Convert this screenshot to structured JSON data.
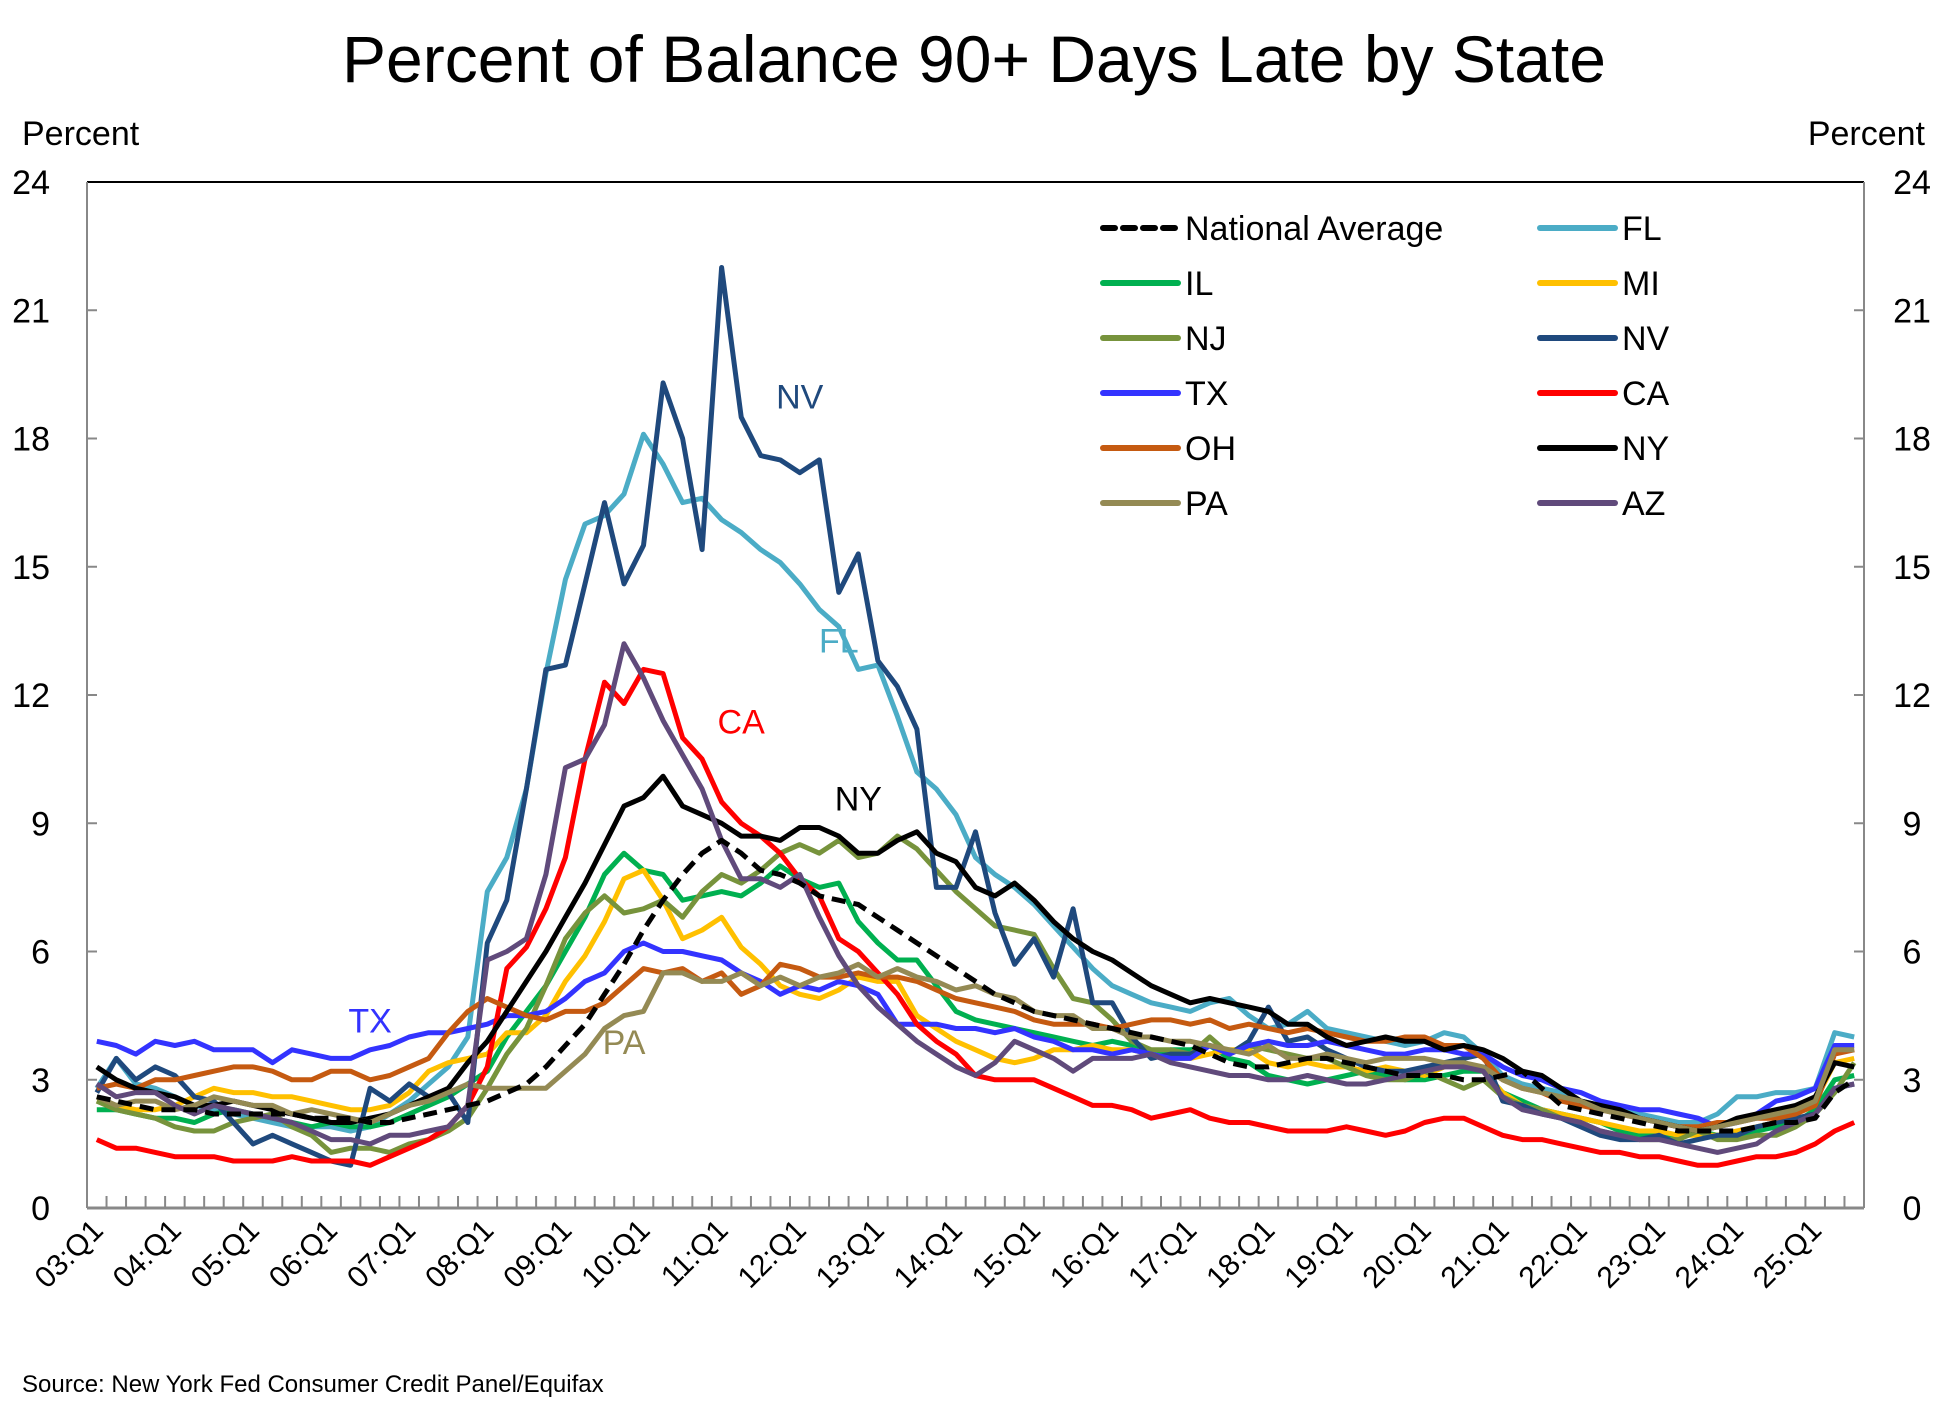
{
  "chart_data": {
    "type": "line",
    "title": "Percent of Balance 90+ Days Late by State",
    "ylabel_left": "Percent",
    "ylabel_right": "Percent",
    "xlabel": "",
    "ylim": [
      0,
      24
    ],
    "yticks": [
      0,
      3,
      6,
      9,
      12,
      15,
      18,
      21,
      24
    ],
    "x_start": "03:Q1",
    "x_end": "25:Q3",
    "xtick_labels": [
      "03:Q1",
      "04:Q1",
      "05:Q1",
      "06:Q1",
      "07:Q1",
      "08:Q1",
      "09:Q1",
      "10:Q1",
      "11:Q1",
      "12:Q1",
      "13:Q1",
      "14:Q1",
      "15:Q1",
      "16:Q1",
      "17:Q1",
      "18:Q1",
      "19:Q1",
      "20:Q1",
      "21:Q1",
      "22:Q1",
      "23:Q1",
      "24:Q1",
      "25:Q1"
    ],
    "grid": false,
    "legend_position": "top-right",
    "source": "Source: New York Fed Consumer Credit Panel/Equifax",
    "annotations": [
      {
        "text": "NV",
        "series": "NV",
        "x": "12:Q1",
        "y": 18.7
      },
      {
        "text": "FL",
        "series": "FL",
        "x": "12:Q3",
        "y": 13.0
      },
      {
        "text": "CA",
        "series": "CA",
        "x": "11:Q2",
        "y": 11.1
      },
      {
        "text": "NY",
        "series": "NY",
        "x": "12:Q4",
        "y": 9.3
      },
      {
        "text": "TX",
        "series": "TX",
        "x": "06:Q3",
        "y": 4.1
      },
      {
        "text": "PA",
        "series": "PA",
        "x": "09:Q4",
        "y": 3.6
      }
    ],
    "series": [
      {
        "name": "National Average",
        "color": "#000000",
        "dashed": true,
        "values": [
          2.6,
          2.5,
          2.4,
          2.3,
          2.3,
          2.3,
          2.2,
          2.2,
          2.2,
          2.2,
          2.2,
          2.1,
          2.1,
          2.1,
          2.0,
          2.0,
          2.1,
          2.2,
          2.3,
          2.4,
          2.5,
          2.7,
          2.9,
          3.3,
          3.8,
          4.3,
          5.0,
          5.7,
          6.5,
          7.2,
          7.8,
          8.3,
          8.6,
          8.3,
          7.9,
          7.8,
          7.6,
          7.3,
          7.2,
          7.1,
          6.8,
          6.5,
          6.2,
          5.9,
          5.6,
          5.3,
          5.0,
          4.8,
          4.6,
          4.5,
          4.4,
          4.3,
          4.2,
          4.1,
          4.0,
          3.9,
          3.8,
          3.6,
          3.4,
          3.3,
          3.3,
          3.4,
          3.5,
          3.5,
          3.4,
          3.3,
          3.2,
          3.1,
          3.1,
          3.1,
          3.0,
          3.0,
          3.1,
          3.2,
          2.8,
          2.4,
          2.3,
          2.2,
          2.1,
          2.0,
          1.9,
          1.8,
          1.8,
          1.8,
          1.8,
          1.9,
          2.0,
          2.0,
          2.1,
          2.7,
          3.0
        ]
      },
      {
        "name": "FL",
        "color": "#4BACC6",
        "dashed": false,
        "values": [
          2.8,
          3.5,
          2.9,
          2.8,
          2.6,
          2.4,
          2.3,
          2.2,
          2.1,
          2.0,
          1.9,
          1.9,
          1.9,
          1.8,
          1.9,
          2.2,
          2.5,
          2.9,
          3.3,
          4.0,
          7.4,
          8.2,
          9.8,
          12.5,
          14.7,
          16.0,
          16.2,
          16.7,
          18.1,
          17.4,
          16.5,
          16.6,
          16.1,
          15.8,
          15.4,
          15.1,
          14.6,
          14.0,
          13.6,
          12.6,
          12.7,
          11.5,
          10.2,
          9.8,
          9.2,
          8.2,
          7.8,
          7.5,
          7.1,
          6.6,
          6.1,
          5.6,
          5.2,
          5.0,
          4.8,
          4.7,
          4.6,
          4.8,
          4.9,
          4.5,
          4.2,
          4.3,
          4.6,
          4.2,
          4.1,
          4.0,
          3.9,
          3.8,
          3.9,
          4.1,
          4.0,
          3.6,
          3.1,
          2.9,
          2.8,
          2.7,
          2.5,
          2.4,
          2.3,
          2.2,
          2.1,
          2.0,
          2.0,
          2.2,
          2.6,
          2.6,
          2.7,
          2.7,
          2.8,
          4.1,
          4.0
        ]
      },
      {
        "name": "IL",
        "color": "#00B050",
        "dashed": false,
        "values": [
          2.3,
          2.3,
          2.2,
          2.1,
          2.1,
          2.0,
          2.2,
          2.3,
          2.2,
          2.1,
          2.0,
          1.9,
          2.0,
          1.9,
          1.9,
          2.0,
          2.2,
          2.4,
          2.6,
          2.9,
          3.2,
          4.0,
          4.6,
          5.2,
          6.0,
          6.8,
          7.8,
          8.3,
          7.9,
          7.8,
          7.2,
          7.3,
          7.4,
          7.3,
          7.6,
          8.0,
          7.7,
          7.5,
          7.6,
          6.7,
          6.2,
          5.8,
          5.8,
          5.2,
          4.6,
          4.4,
          4.3,
          4.2,
          4.1,
          4.0,
          3.9,
          3.8,
          3.9,
          3.8,
          3.6,
          3.7,
          3.7,
          3.8,
          3.5,
          3.4,
          3.1,
          3.0,
          2.9,
          3.0,
          3.1,
          3.2,
          3.1,
          3.0,
          3.0,
          3.1,
          3.2,
          3.2,
          2.7,
          2.5,
          2.3,
          2.2,
          2.1,
          2.0,
          1.8,
          1.7,
          1.7,
          1.7,
          1.8,
          1.7,
          1.7,
          1.8,
          1.9,
          2.0,
          2.3,
          3.0,
          3.1
        ]
      },
      {
        "name": "MI",
        "color": "#FFC000",
        "dashed": false,
        "values": [
          2.5,
          2.4,
          2.3,
          2.3,
          2.4,
          2.6,
          2.8,
          2.7,
          2.7,
          2.6,
          2.6,
          2.5,
          2.4,
          2.3,
          2.3,
          2.4,
          2.7,
          3.2,
          3.4,
          3.5,
          3.6,
          4.1,
          4.1,
          4.5,
          5.3,
          5.9,
          6.7,
          7.7,
          7.9,
          7.2,
          6.3,
          6.5,
          6.8,
          6.1,
          5.7,
          5.2,
          5.0,
          4.9,
          5.1,
          5.4,
          5.3,
          5.3,
          4.5,
          4.2,
          3.9,
          3.7,
          3.5,
          3.4,
          3.5,
          3.7,
          3.7,
          3.8,
          3.7,
          3.7,
          3.6,
          3.5,
          3.5,
          3.6,
          3.7,
          3.7,
          3.4,
          3.3,
          3.4,
          3.3,
          3.3,
          3.2,
          3.3,
          3.2,
          3.1,
          3.3,
          3.4,
          3.2,
          2.7,
          2.4,
          2.3,
          2.2,
          2.1,
          2.0,
          1.9,
          1.8,
          1.8,
          1.7,
          1.7,
          1.7,
          1.8,
          1.9,
          2.0,
          2.3,
          2.5,
          3.4,
          3.5
        ]
      },
      {
        "name": "NJ",
        "color": "#77933C",
        "dashed": false,
        "values": [
          2.5,
          2.3,
          2.2,
          2.1,
          1.9,
          1.8,
          1.8,
          2.0,
          2.1,
          2.2,
          1.9,
          1.7,
          1.3,
          1.4,
          1.4,
          1.3,
          1.5,
          1.6,
          1.8,
          2.1,
          2.8,
          3.6,
          4.2,
          5.2,
          6.3,
          6.9,
          7.3,
          6.9,
          7.0,
          7.2,
          6.8,
          7.4,
          7.8,
          7.6,
          7.9,
          8.3,
          8.5,
          8.3,
          8.6,
          8.2,
          8.3,
          8.7,
          8.4,
          7.9,
          7.4,
          7.0,
          6.6,
          6.5,
          6.4,
          5.6,
          4.9,
          4.8,
          4.4,
          3.9,
          3.7,
          3.7,
          3.6,
          4.0,
          3.6,
          3.8,
          3.7,
          3.6,
          3.5,
          3.5,
          3.3,
          3.1,
          3.0,
          3.0,
          3.2,
          3.0,
          2.8,
          3.0,
          2.6,
          2.4,
          2.3,
          2.1,
          2.0,
          1.8,
          1.7,
          1.6,
          1.6,
          1.6,
          1.8,
          1.6,
          1.6,
          1.7,
          1.7,
          1.9,
          2.2,
          2.7,
          3.4
        ]
      },
      {
        "name": "NV",
        "color": "#1F497D",
        "dashed": false,
        "values": [
          2.7,
          3.5,
          3.0,
          3.3,
          3.1,
          2.6,
          2.5,
          2.0,
          1.5,
          1.7,
          1.5,
          1.3,
          1.1,
          1.0,
          2.8,
          2.5,
          2.9,
          2.6,
          2.7,
          2.0,
          6.2,
          7.2,
          9.8,
          12.6,
          12.7,
          14.6,
          16.5,
          14.6,
          15.5,
          19.3,
          18.0,
          15.4,
          22.0,
          18.5,
          17.6,
          17.5,
          17.2,
          17.5,
          14.4,
          15.3,
          12.8,
          12.2,
          11.2,
          7.5,
          7.5,
          8.8,
          6.9,
          5.7,
          6.3,
          5.4,
          7.0,
          4.8,
          4.8,
          4.0,
          3.5,
          3.6,
          3.6,
          3.8,
          3.6,
          3.9,
          4.7,
          3.9,
          4.0,
          3.7,
          3.5,
          3.3,
          3.2,
          3.2,
          3.3,
          3.4,
          3.5,
          3.6,
          2.5,
          2.4,
          2.2,
          2.1,
          1.9,
          1.7,
          1.6,
          1.6,
          1.7,
          1.5,
          1.6,
          1.7,
          1.7,
          1.9,
          2.0,
          2.1,
          2.2,
          2.8,
          2.9
        ]
      },
      {
        "name": "TX",
        "color": "#3333FF",
        "dashed": false,
        "values": [
          3.9,
          3.8,
          3.6,
          3.9,
          3.8,
          3.9,
          3.7,
          3.7,
          3.7,
          3.4,
          3.7,
          3.6,
          3.5,
          3.5,
          3.7,
          3.8,
          4.0,
          4.1,
          4.1,
          4.2,
          4.3,
          4.5,
          4.5,
          4.6,
          4.9,
          5.3,
          5.5,
          6.0,
          6.2,
          6.0,
          6.0,
          5.9,
          5.8,
          5.5,
          5.3,
          5.0,
          5.2,
          5.1,
          5.3,
          5.2,
          5.0,
          4.3,
          4.3,
          4.3,
          4.2,
          4.2,
          4.1,
          4.2,
          4.0,
          3.9,
          3.7,
          3.7,
          3.6,
          3.7,
          3.6,
          3.5,
          3.5,
          3.8,
          3.6,
          3.8,
          3.9,
          3.8,
          3.8,
          3.9,
          3.8,
          3.7,
          3.6,
          3.6,
          3.7,
          3.7,
          3.6,
          3.6,
          3.3,
          3.1,
          3.0,
          2.8,
          2.7,
          2.5,
          2.4,
          2.3,
          2.3,
          2.2,
          2.1,
          1.9,
          2.0,
          2.2,
          2.5,
          2.6,
          2.8,
          3.8,
          3.8
        ]
      },
      {
        "name": "CA",
        "color": "#FF0000",
        "dashed": false,
        "values": [
          1.6,
          1.4,
          1.4,
          1.3,
          1.2,
          1.2,
          1.2,
          1.1,
          1.1,
          1.1,
          1.2,
          1.1,
          1.1,
          1.1,
          1.0,
          1.2,
          1.4,
          1.6,
          1.9,
          2.4,
          3.3,
          5.6,
          6.1,
          7.0,
          8.2,
          10.5,
          12.3,
          11.8,
          12.6,
          12.5,
          11.0,
          10.5,
          9.5,
          9.0,
          8.7,
          8.3,
          7.7,
          7.3,
          6.3,
          6.0,
          5.5,
          5.0,
          4.3,
          3.9,
          3.6,
          3.1,
          3.0,
          3.0,
          3.0,
          2.8,
          2.6,
          2.4,
          2.4,
          2.3,
          2.1,
          2.2,
          2.3,
          2.1,
          2.0,
          2.0,
          1.9,
          1.8,
          1.8,
          1.8,
          1.9,
          1.8,
          1.7,
          1.8,
          2.0,
          2.1,
          2.1,
          1.9,
          1.7,
          1.6,
          1.6,
          1.5,
          1.4,
          1.3,
          1.3,
          1.2,
          1.2,
          1.1,
          1.0,
          1.0,
          1.1,
          1.2,
          1.2,
          1.3,
          1.5,
          1.8,
          2.0
        ]
      },
      {
        "name": "OH",
        "color": "#C55A11",
        "dashed": false,
        "values": [
          2.8,
          2.9,
          2.8,
          3.0,
          3.0,
          3.1,
          3.2,
          3.3,
          3.3,
          3.2,
          3.0,
          3.0,
          3.2,
          3.2,
          3.0,
          3.1,
          3.3,
          3.5,
          4.1,
          4.6,
          4.9,
          4.7,
          4.5,
          4.4,
          4.6,
          4.6,
          4.8,
          5.2,
          5.6,
          5.5,
          5.6,
          5.3,
          5.5,
          5.0,
          5.2,
          5.7,
          5.6,
          5.4,
          5.4,
          5.5,
          5.4,
          5.4,
          5.3,
          5.1,
          4.9,
          4.8,
          4.7,
          4.6,
          4.4,
          4.3,
          4.3,
          4.3,
          4.2,
          4.3,
          4.4,
          4.4,
          4.3,
          4.4,
          4.2,
          4.3,
          4.2,
          4.1,
          4.2,
          4.1,
          4.0,
          3.9,
          3.9,
          4.0,
          4.0,
          3.8,
          3.8,
          3.5,
          3.0,
          2.8,
          2.7,
          2.5,
          2.4,
          2.3,
          2.2,
          2.1,
          2.0,
          1.9,
          1.9,
          2.0,
          2.0,
          2.1,
          2.1,
          2.2,
          2.4,
          3.6,
          3.7
        ]
      },
      {
        "name": "NY",
        "color": "#000000",
        "dashed": false,
        "values": [
          3.3,
          3.0,
          2.8,
          2.7,
          2.6,
          2.4,
          2.4,
          2.5,
          2.4,
          2.3,
          2.2,
          2.1,
          2.0,
          2.0,
          2.1,
          2.2,
          2.4,
          2.6,
          2.8,
          3.4,
          3.9,
          4.6,
          5.3,
          6.0,
          6.8,
          7.6,
          8.5,
          9.4,
          9.6,
          10.1,
          9.4,
          9.2,
          9.0,
          8.7,
          8.7,
          8.6,
          8.9,
          8.9,
          8.7,
          8.3,
          8.3,
          8.6,
          8.8,
          8.3,
          8.1,
          7.5,
          7.3,
          7.6,
          7.2,
          6.7,
          6.3,
          6.0,
          5.8,
          5.5,
          5.2,
          5.0,
          4.8,
          4.9,
          4.8,
          4.7,
          4.6,
          4.3,
          4.3,
          4.0,
          3.8,
          3.9,
          4.0,
          3.9,
          3.9,
          3.7,
          3.8,
          3.7,
          3.5,
          3.2,
          3.1,
          2.8,
          2.5,
          2.4,
          2.3,
          2.1,
          2.0,
          1.9,
          1.8,
          1.9,
          2.1,
          2.2,
          2.3,
          2.4,
          2.6,
          3.4,
          3.3
        ]
      },
      {
        "name": "PA",
        "color": "#948A54",
        "dashed": false,
        "values": [
          2.6,
          2.4,
          2.5,
          2.5,
          2.3,
          2.4,
          2.6,
          2.5,
          2.4,
          2.4,
          2.2,
          2.3,
          2.2,
          2.1,
          2.0,
          2.2,
          2.4,
          2.5,
          2.7,
          2.9,
          2.8,
          2.8,
          2.8,
          2.8,
          3.2,
          3.6,
          4.2,
          4.5,
          4.6,
          5.5,
          5.5,
          5.3,
          5.3,
          5.5,
          5.2,
          5.4,
          5.2,
          5.4,
          5.5,
          5.7,
          5.4,
          5.6,
          5.4,
          5.3,
          5.1,
          5.2,
          5.0,
          4.9,
          4.6,
          4.5,
          4.5,
          4.2,
          4.2,
          4.0,
          4.0,
          3.9,
          3.9,
          3.8,
          3.7,
          3.6,
          3.8,
          3.5,
          3.5,
          3.6,
          3.5,
          3.4,
          3.5,
          3.5,
          3.5,
          3.4,
          3.4,
          3.3,
          3.0,
          2.8,
          2.7,
          2.6,
          2.5,
          2.3,
          2.2,
          2.1,
          2.0,
          1.9,
          1.8,
          1.9,
          2.0,
          2.1,
          2.2,
          2.3,
          2.5,
          3.7,
          3.7
        ]
      },
      {
        "name": "AZ",
        "color": "#604A7B",
        "dashed": false,
        "values": [
          2.9,
          2.6,
          2.7,
          2.7,
          2.4,
          2.2,
          2.4,
          2.3,
          2.2,
          2.1,
          2.0,
          1.8,
          1.6,
          1.6,
          1.5,
          1.7,
          1.7,
          1.8,
          1.9,
          2.4,
          5.8,
          6.0,
          6.3,
          7.8,
          10.3,
          10.5,
          11.3,
          13.2,
          12.4,
          11.4,
          10.6,
          9.8,
          8.6,
          7.7,
          7.7,
          7.5,
          7.8,
          6.8,
          5.9,
          5.2,
          4.7,
          4.3,
          3.9,
          3.6,
          3.3,
          3.1,
          3.4,
          3.9,
          3.7,
          3.5,
          3.2,
          3.5,
          3.5,
          3.5,
          3.6,
          3.4,
          3.3,
          3.2,
          3.1,
          3.1,
          3.0,
          3.0,
          3.1,
          3.0,
          2.9,
          2.9,
          3.0,
          3.1,
          3.2,
          3.3,
          3.3,
          3.2,
          2.6,
          2.3,
          2.2,
          2.1,
          2.0,
          1.8,
          1.7,
          1.6,
          1.6,
          1.5,
          1.4,
          1.3,
          1.4,
          1.5,
          1.8,
          2.0,
          2.2,
          2.8,
          2.9
        ]
      }
    ],
    "legend": {
      "left": [
        "National Average",
        "IL",
        "NJ",
        "TX",
        "OH",
        "PA"
      ],
      "right": [
        "FL",
        "MI",
        "NV",
        "CA",
        "NY",
        "AZ"
      ]
    }
  }
}
